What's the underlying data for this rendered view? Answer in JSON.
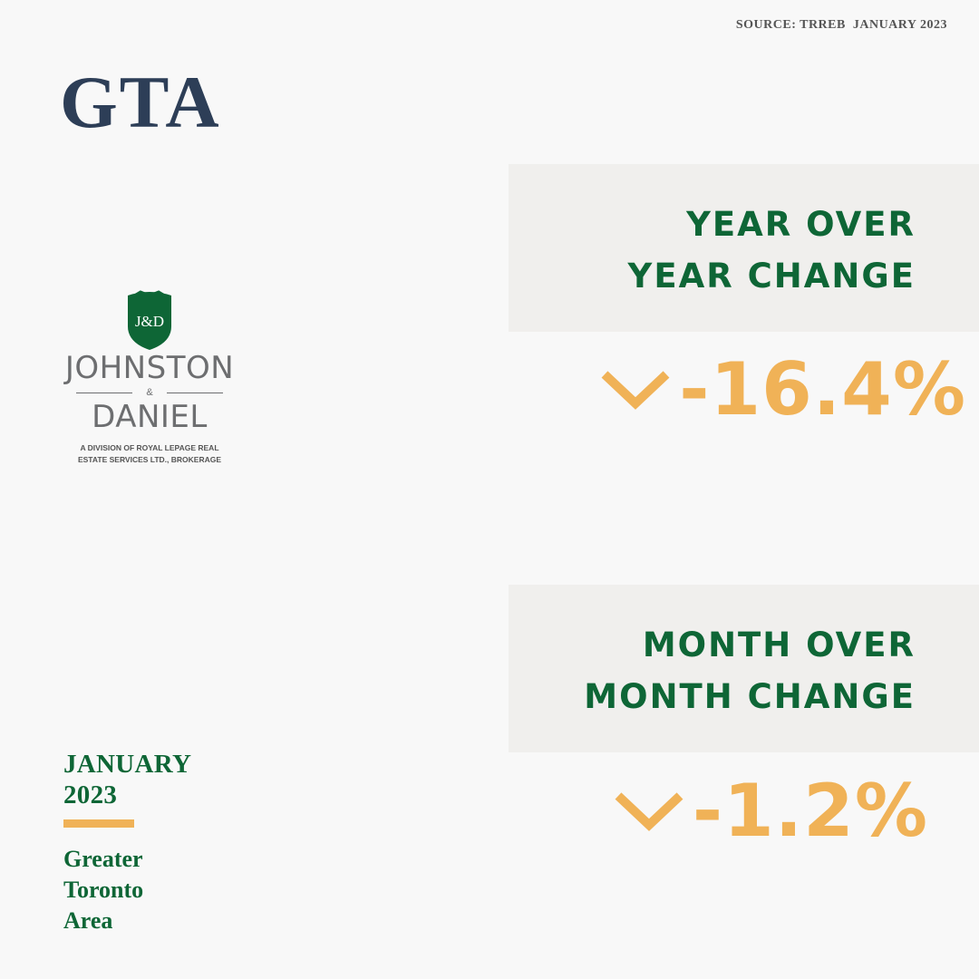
{
  "source": "SOURCE: TRREB  JANUARY 2023",
  "region": "GTA",
  "year_over_year": {
    "label": "YEAR OVER YEAR CHANGE",
    "value": "-16.4%",
    "direction_icon": "chevron-down-icon"
  },
  "month_over_month": {
    "label": "MONTH OVER MONTH CHANGE",
    "value": "-1.2%",
    "direction_icon": "chevron-down-icon"
  },
  "logo": {
    "monogram": "J&D",
    "name_line1": "JOHNSTON",
    "ampersand": "&",
    "name_line2": "DANIEL",
    "division": "A DIVISION OF ROYAL LEPAGE REAL ESTATE SERVICES LTD., BROKERAGE"
  },
  "date": "JANUARY 2023",
  "area": "Greater Toronto Area",
  "colors": {
    "background": "#f8f8f8",
    "panel": "#f0efed",
    "green": "#0e6636",
    "navy": "#2d3e57",
    "accent": "#f0b257"
  }
}
